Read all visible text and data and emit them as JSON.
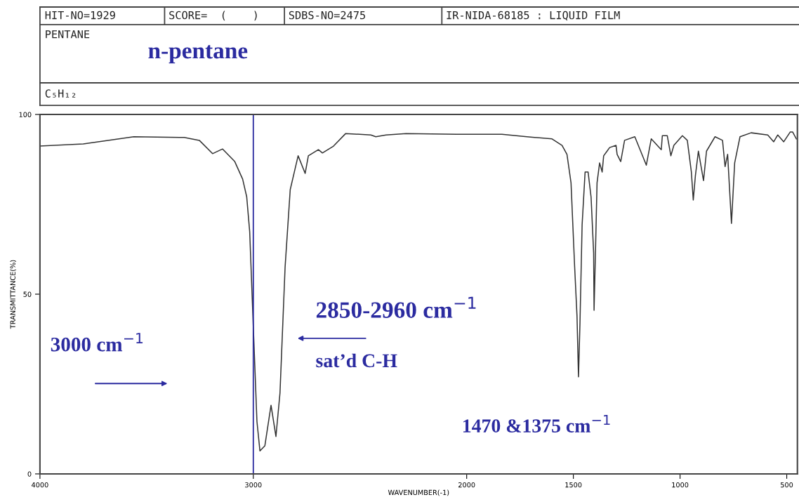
{
  "chart_data": {
    "type": "line",
    "title": "n-pentane",
    "xlabel": "WAVENUMBER(-1)",
    "ylabel": "TRANSMITTANCE(%)",
    "annotations": [
      "HIT-NO=1929",
      "SCORE=  (    )",
      "SDBS-NO=2475",
      "IR-NIDA-68185 : LIQUID FILM",
      "PENTANE",
      "C₅H₁₂",
      "3000 cm$^{−1}$",
      "2850-2960 cm$^{−1}$",
      "sat’d C-H",
      "1470 &1375 cm$^{−1}$"
    ],
    "xlim": [
      4000,
      450
    ],
    "xticks": [
      4000,
      3000,
      2000,
      1500,
      1000,
      500
    ],
    "ylim": [
      0,
      100
    ],
    "yticks": [
      0,
      50,
      100
    ],
    "ref_lines": [
      {
        "axis": "x",
        "value": 3000,
        "color": "#2b2ba0"
      }
    ],
    "series": [
      {
        "color": "#333333",
        "x": [
          4000,
          3797,
          3560,
          3324,
          3253,
          3191,
          3144,
          3087,
          3050,
          3031,
          3017,
          3002,
          2983,
          2969,
          2946,
          2917,
          2894,
          2875,
          2851,
          2827,
          2790,
          2757,
          2742,
          2695,
          2676,
          2624,
          2567,
          2449,
          2426,
          2378,
          2284,
          2047,
          1835,
          1718,
          1600,
          1553,
          1530,
          1511,
          1494,
          1483,
          1476,
          1469,
          1459,
          1445,
          1431,
          1417,
          1405,
          1403,
          1398,
          1389,
          1377,
          1365,
          1358,
          1342,
          1330,
          1300,
          1295,
          1278,
          1260,
          1212,
          1158,
          1135,
          1088,
          1083,
          1060,
          1043,
          1029,
          989,
          966,
          947,
          938,
          928,
          914,
          890,
          876,
          836,
          801,
          789,
          777,
          759,
          744,
          719,
          667,
          589,
          561,
          542,
          514,
          484,
          472,
          455
        ],
        "values": [
          91.2,
          91.8,
          93.8,
          93.6,
          92.8,
          89.1,
          90.4,
          86.9,
          82,
          77.1,
          67.4,
          44,
          14.6,
          6.4,
          7.8,
          19.1,
          10.4,
          22.5,
          57.6,
          79.1,
          88.5,
          83.6,
          88.5,
          90.2,
          89.3,
          91.2,
          94.7,
          94.3,
          93.8,
          94.3,
          94.7,
          94.5,
          94.5,
          93.8,
          93.2,
          91.4,
          88.9,
          81,
          57.6,
          44,
          27,
          42,
          69.3,
          84,
          84,
          77,
          61.5,
          45.5,
          57.6,
          81,
          86.5,
          84,
          88.5,
          89.8,
          90.8,
          91.4,
          88.9,
          86.9,
          92.8,
          93.8,
          85.9,
          93.2,
          90.2,
          94.1,
          94.1,
          88.5,
          91.4,
          94.1,
          92.8,
          84,
          76.2,
          83,
          89.8,
          81.6,
          89.8,
          93.8,
          92.8,
          85.5,
          88.9,
          69.7,
          86.5,
          93.8,
          94.9,
          94.3,
          92.4,
          94.3,
          92.4,
          95.1,
          95.1,
          93.2
        ]
      }
    ]
  }
}
